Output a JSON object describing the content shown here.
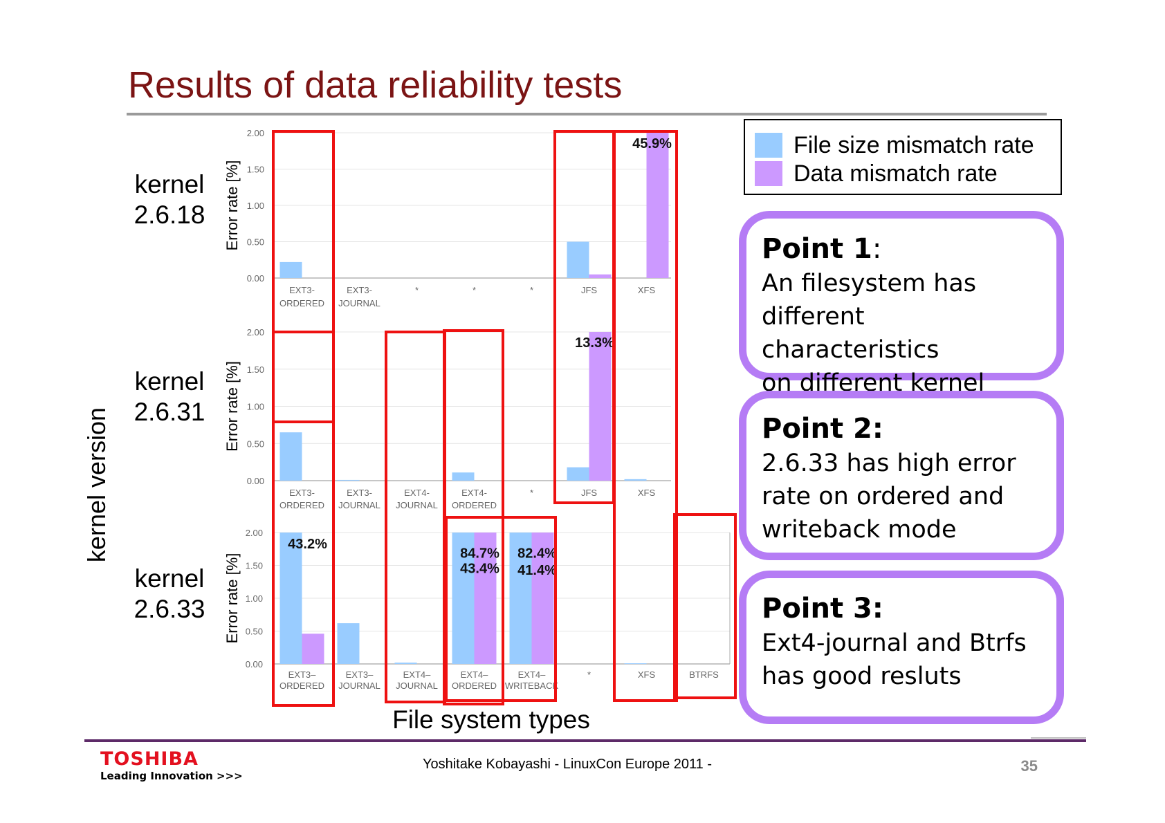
{
  "title": "Results of data reliability tests",
  "page_number": "35",
  "footer": "Yoshitake Kobayashi  - LinuxCon Europe 2011 -",
  "logo": {
    "name": "TOSHIBA",
    "tagline": "Leading Innovation >>>"
  },
  "legend": [
    {
      "label": "File size mismatch rate",
      "color": "#99ccff"
    },
    {
      "label": "Data mismatch rate",
      "color": "#cc99ff"
    }
  ],
  "points": [
    {
      "head": "Point 1",
      "head_suffix": ":",
      "lines": [
        "An filesystem has",
        "different characteristics",
        "on different kernel"
      ]
    },
    {
      "head": "Point 2:",
      "head_suffix": "",
      "lines": [
        "2.6.33 has high error",
        "rate on ordered and",
        "writeback mode"
      ]
    },
    {
      "head": "Point 3:",
      "head_suffix": "",
      "lines": [
        "Ext4-journal and Btrfs",
        "has good resluts"
      ]
    }
  ],
  "colors": {
    "title": "#7b1414",
    "highlight_box": "#ee1111",
    "point_border": "#b57cf5",
    "footer_rule": "#5d2a68"
  },
  "chart_data": {
    "type": "bar",
    "xlabel": "File system types",
    "group_label": "kernel version",
    "ylabel": "Error rate [%]",
    "series": [
      {
        "name": "File size mismatch rate",
        "color": "#99ccff"
      },
      {
        "name": "Data mismatch rate",
        "color": "#cc99ff"
      }
    ],
    "panels": [
      {
        "kernel": [
          "kernel",
          "2.6.18"
        ],
        "ylim": [
          0,
          2
        ],
        "yticks": [
          "0.00",
          "0.50",
          "1.00",
          "1.50",
          "2.00"
        ],
        "categories": [
          [
            "EXT3-",
            "ORDERED"
          ],
          [
            "EXT3-",
            "JOURNAL"
          ],
          [
            "*"
          ],
          [
            "*"
          ],
          [
            "*"
          ],
          [
            "JFS"
          ],
          [
            "XFS"
          ]
        ],
        "size_values": [
          0.22,
          0,
          null,
          null,
          null,
          0.5,
          0
        ],
        "data_values": [
          0,
          0,
          null,
          null,
          null,
          0.05,
          45.9
        ],
        "labels": [
          {
            "text": "45.9%",
            "cat": 6,
            "y": 1.85
          }
        ]
      },
      {
        "kernel": [
          "kernel",
          "2.6.31"
        ],
        "ylim": [
          0,
          2
        ],
        "yticks": [
          "0.00",
          "0.50",
          "1.00",
          "1.50",
          "2.00"
        ],
        "categories": [
          [
            "EXT3-",
            "ORDERED"
          ],
          [
            "EXT3-",
            "JOURNAL"
          ],
          [
            "EXT4-",
            "JOURNAL"
          ],
          [
            "EXT4-",
            "ORDERED"
          ],
          [
            "*"
          ],
          [
            "JFS"
          ],
          [
            "XFS"
          ]
        ],
        "size_values": [
          0.65,
          0.01,
          0,
          0.11,
          null,
          0.18,
          0.02
        ],
        "data_values": [
          0,
          0,
          0,
          0,
          null,
          13.3,
          0
        ],
        "labels": [
          {
            "text": "13.3%",
            "cat": 5,
            "y": 1.85
          }
        ]
      },
      {
        "kernel": [
          "kernel",
          "2.6.33"
        ],
        "ylim": [
          0,
          2
        ],
        "yticks": [
          "0.00",
          "0.50",
          "1.00",
          "1.50",
          "2.00"
        ],
        "categories": [
          [
            "EXT3–",
            "ORDERED"
          ],
          [
            "EXT3–",
            "JOURNAL"
          ],
          [
            "EXT4–",
            "JOURNAL"
          ],
          [
            "EXT4–",
            "ORDERED"
          ],
          [
            "EXT4–",
            "WRITEBACK"
          ],
          [
            "*"
          ],
          [
            "XFS"
          ],
          [
            "BTRFS"
          ]
        ],
        "size_values": [
          43.2,
          0.62,
          0.02,
          43.4,
          41.4,
          null,
          0.01,
          0
        ],
        "data_values": [
          0.46,
          0,
          0,
          84.7,
          82.4,
          null,
          0,
          0
        ],
        "labels": [
          {
            "text": "43.2%",
            "cat": 0,
            "y": 1.82
          },
          {
            "text": "84.7%",
            "cat": 3,
            "y": 1.68
          },
          {
            "text": "82.4%",
            "cat": 4,
            "y": 1.68
          },
          {
            "text": "43.4%",
            "cat": 3,
            "y": 1.45
          },
          {
            "text": "41.4%",
            "cat": 4,
            "y": 1.42
          }
        ]
      }
    ]
  }
}
